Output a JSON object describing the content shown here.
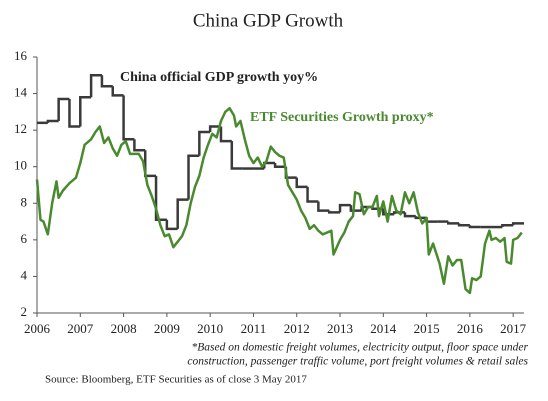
{
  "chart_data": {
    "type": "line",
    "title": "China GDP Growth",
    "xlim": [
      2006,
      2017.25
    ],
    "ylim": [
      2,
      16
    ],
    "xticks": [
      2006,
      2007,
      2008,
      2009,
      2010,
      2011,
      2012,
      2013,
      2014,
      2015,
      2016,
      2017
    ],
    "yticks": [
      2,
      4,
      6,
      8,
      10,
      12,
      14,
      16
    ],
    "grid": false,
    "series": [
      {
        "name": "China official GDP growth yoy%",
        "color": "#3a3a3a",
        "drawstyle": "steps-post",
        "x": [
          2006,
          2006.25,
          2006.5,
          2006.75,
          2007,
          2007.25,
          2007.5,
          2007.75,
          2008,
          2008.25,
          2008.5,
          2008.75,
          2009,
          2009.25,
          2009.5,
          2009.75,
          2010,
          2010.25,
          2010.5,
          2010.75,
          2011,
          2011.25,
          2011.5,
          2011.75,
          2012,
          2012.25,
          2012.5,
          2012.75,
          2013,
          2013.25,
          2013.5,
          2013.75,
          2014,
          2014.25,
          2014.5,
          2014.75,
          2015,
          2015.25,
          2015.5,
          2015.75,
          2016,
          2016.25,
          2016.5,
          2016.75,
          2017
        ],
        "values": [
          12.4,
          12.5,
          13.7,
          12.2,
          13.8,
          15.0,
          14.4,
          13.9,
          11.5,
          10.9,
          9.5,
          7.1,
          6.6,
          8.2,
          10.6,
          11.9,
          12.2,
          11.4,
          9.9,
          9.9,
          9.9,
          10.2,
          10.0,
          9.4,
          8.9,
          8.1,
          7.6,
          7.5,
          7.9,
          7.6,
          7.8,
          7.7,
          7.4,
          7.5,
          7.3,
          7.2,
          7.0,
          7.0,
          6.9,
          6.8,
          6.7,
          6.7,
          6.7,
          6.8,
          6.9
        ]
      },
      {
        "name": "ETF Securities Growth proxy*",
        "color": "#4a8a2e",
        "x": [
          2006,
          2006.08,
          2006.15,
          2006.25,
          2006.35,
          2006.45,
          2006.5,
          2006.6,
          2006.75,
          2006.9,
          2007,
          2007.1,
          2007.25,
          2007.35,
          2007.45,
          2007.55,
          2007.65,
          2007.75,
          2007.85,
          2007.95,
          2008.05,
          2008.15,
          2008.35,
          2008.45,
          2008.55,
          2008.65,
          2008.75,
          2008.85,
          2008.95,
          2009.05,
          2009.15,
          2009.25,
          2009.35,
          2009.45,
          2009.55,
          2009.65,
          2009.75,
          2009.85,
          2009.95,
          2010.05,
          2010.15,
          2010.25,
          2010.35,
          2010.45,
          2010.55,
          2010.6,
          2010.7,
          2010.8,
          2010.9,
          2011,
          2011.1,
          2011.2,
          2011.3,
          2011.4,
          2011.5,
          2011.6,
          2011.7,
          2011.8,
          2011.9,
          2012,
          2012.1,
          2012.2,
          2012.3,
          2012.4,
          2012.5,
          2012.6,
          2012.7,
          2012.8,
          2012.85,
          2013,
          2013.1,
          2013.2,
          2013.3,
          2013.35,
          2013.45,
          2013.55,
          2013.65,
          2013.75,
          2013.85,
          2013.9,
          2014,
          2014.1,
          2014.2,
          2014.3,
          2014.4,
          2014.5,
          2014.6,
          2014.7,
          2014.8,
          2014.9,
          2015,
          2015.05,
          2015.15,
          2015.3,
          2015.4,
          2015.5,
          2015.6,
          2015.7,
          2015.8,
          2015.9,
          2016,
          2016.05,
          2016.15,
          2016.25,
          2016.35,
          2016.45,
          2016.5,
          2016.6,
          2016.7,
          2016.8,
          2016.85,
          2016.95,
          2017,
          2017.1,
          2017.2
        ],
        "values": [
          9.3,
          7.1,
          7.0,
          6.3,
          8.0,
          9.2,
          8.3,
          8.7,
          9.1,
          9.4,
          10.2,
          11.2,
          11.5,
          11.9,
          12.2,
          11.3,
          11.6,
          11.0,
          10.6,
          11.2,
          11.4,
          10.7,
          10.7,
          10.3,
          9.0,
          8.4,
          7.7,
          6.8,
          6.2,
          6.3,
          5.6,
          5.9,
          6.2,
          6.8,
          8.0,
          8.9,
          9.5,
          10.5,
          11.2,
          11.8,
          11.6,
          12.5,
          13.0,
          13.2,
          12.8,
          12.2,
          12.5,
          11.5,
          10.6,
          10.2,
          10.5,
          10.0,
          10.3,
          11.1,
          10.8,
          10.6,
          10.5,
          9.0,
          8.6,
          8.2,
          7.6,
          7.2,
          6.6,
          6.8,
          6.5,
          6.3,
          6.4,
          6.5,
          5.2,
          6.0,
          6.4,
          7.0,
          7.3,
          8.6,
          8.5,
          7.4,
          7.8,
          7.8,
          8.4,
          7.3,
          8.1,
          7.0,
          8.4,
          7.6,
          7.4,
          8.6,
          8.0,
          8.6,
          7.5,
          6.9,
          7.2,
          5.2,
          5.8,
          4.7,
          3.6,
          5.1,
          4.6,
          4.9,
          4.9,
          3.3,
          3.1,
          3.9,
          3.8,
          4.0,
          5.8,
          6.5,
          6.0,
          6.1,
          5.9,
          6.1,
          4.8,
          4.7,
          6.0,
          6.1,
          6.4
        ]
      }
    ],
    "note": [
      "*Based on domestic freight volumes, electricity output, floor space under",
      "construction, passenger traffic volume, port freight volumes & retail sales"
    ],
    "source": "Source: Bloomberg, ETF Securities as of close 3 May 2017"
  }
}
